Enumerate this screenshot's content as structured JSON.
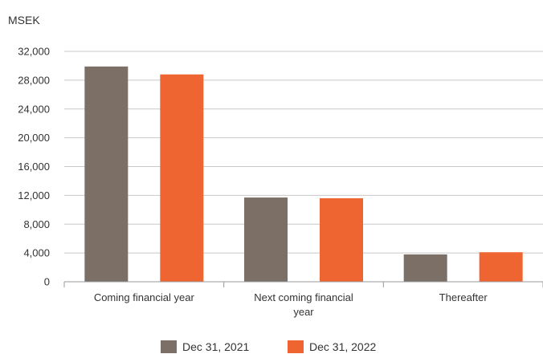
{
  "chart_data": {
    "type": "bar",
    "title": "",
    "ylabel": "MSEK",
    "xlabel": "",
    "categories": [
      [
        "Coming financial year"
      ],
      [
        "Next coming financial",
        "year"
      ],
      [
        "Thereafter"
      ]
    ],
    "series": [
      {
        "name": "Dec 31, 2021",
        "color": "#7b6f66",
        "values": [
          29900,
          11700,
          3800
        ]
      },
      {
        "name": "Dec 31, 2022",
        "color": "#ee6531",
        "values": [
          28800,
          11600,
          4100
        ]
      }
    ],
    "ylim": [
      0,
      32000
    ],
    "yticks": [
      0,
      4000,
      8000,
      12000,
      16000,
      20000,
      24000,
      28000,
      32000
    ],
    "ytick_labels": [
      "0",
      "4,000",
      "8,000",
      "12,000",
      "16,000",
      "20,000",
      "24,000",
      "28,000",
      "32,000"
    ],
    "grid": true,
    "legend_position": "bottom-center"
  }
}
